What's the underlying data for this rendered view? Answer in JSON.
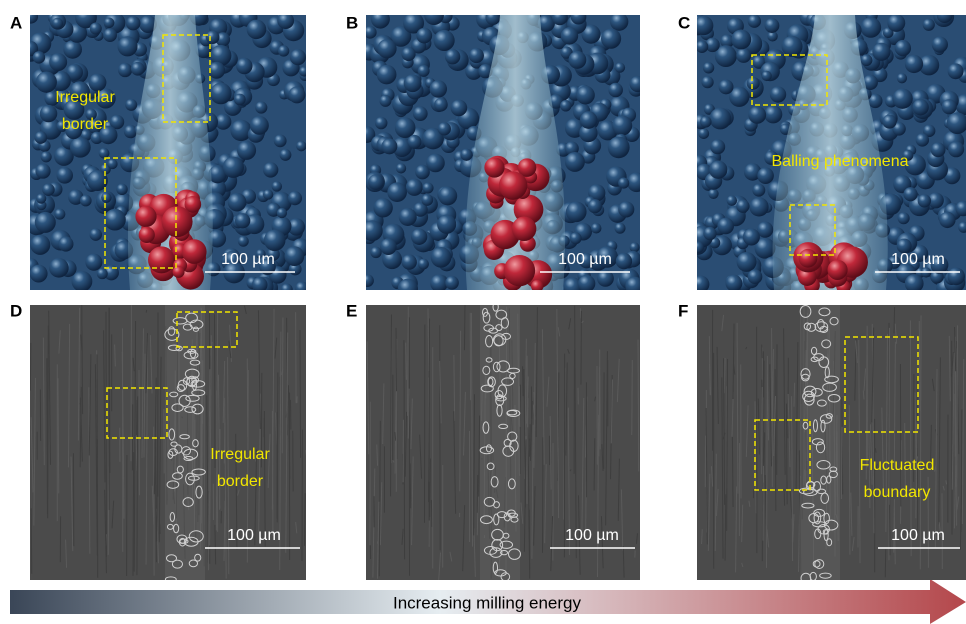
{
  "panels": [
    {
      "label": "A",
      "annotations": [
        {
          "lines": [
            "Irregular",
            "border"
          ]
        }
      ],
      "scale_bar": "100 µm"
    },
    {
      "label": "B",
      "annotations": [],
      "scale_bar": "100 µm"
    },
    {
      "label": "C",
      "annotations": [
        {
          "lines": [
            "Balling phenomena"
          ]
        }
      ],
      "scale_bar": "100 µm"
    },
    {
      "label": "D",
      "annotations": [
        {
          "lines": [
            "Irregular",
            "border"
          ]
        }
      ],
      "scale_bar": "100 µm"
    },
    {
      "label": "E",
      "annotations": [],
      "scale_bar": "100 µm"
    },
    {
      "label": "F",
      "annotations": [
        {
          "lines": [
            "Fluctuated",
            "boundary"
          ]
        }
      ],
      "scale_bar": "100 µm"
    }
  ],
  "arrow": {
    "label": "Increasing milling energy"
  }
}
